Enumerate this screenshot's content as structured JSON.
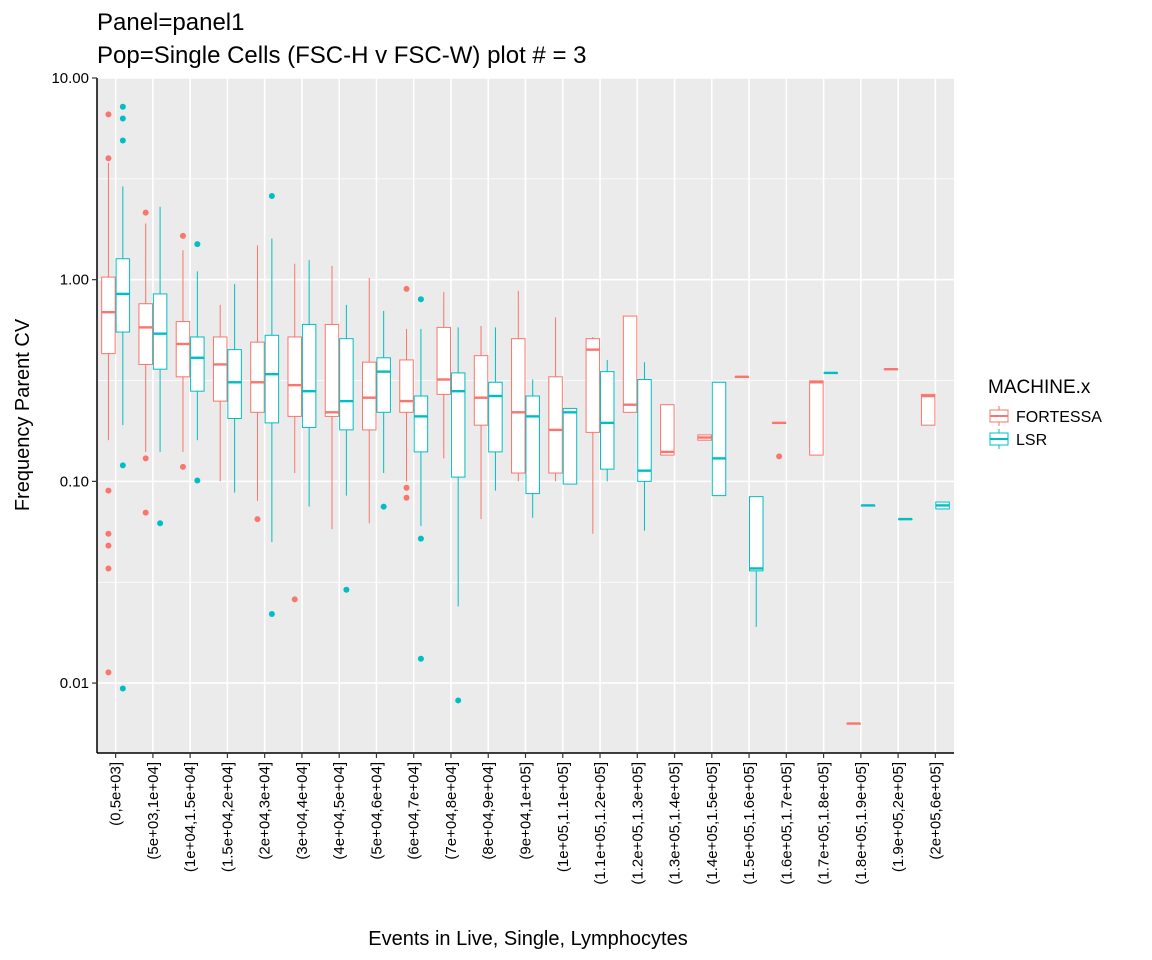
{
  "chart_data": {
    "type": "boxplot",
    "title": "Panel=panel1",
    "subtitle": "Pop=Single Cells (FSC-H v FSC-W) plot # = 3",
    "xlabel": "Events in Live, Single, Lymphocytes",
    "ylabel": "Frequency Parent CV",
    "y_scale": "log10",
    "ylim": [
      0.0045,
      10
    ],
    "y_ticks": [
      {
        "value": 0.01,
        "label": "0.01"
      },
      {
        "value": 0.1,
        "label": "0.10"
      },
      {
        "value": 1,
        "label": "1.00"
      },
      {
        "value": 10,
        "label": "10.00"
      }
    ],
    "grid": true,
    "legend": {
      "title": "MACHINE.x",
      "position": "right"
    },
    "categories": [
      "(0,5e+03]",
      "(5e+03,1e+04]",
      "(1e+04,1.5e+04]",
      "(1.5e+04,2e+04]",
      "(2e+04,3e+04]",
      "(3e+04,4e+04]",
      "(4e+04,5e+04]",
      "(5e+04,6e+04]",
      "(6e+04,7e+04]",
      "(7e+04,8e+04]",
      "(8e+04,9e+04]",
      "(9e+04,1e+05]",
      "(1e+05,1.1e+05]",
      "(1.1e+05,1.2e+05]",
      "(1.2e+05,1.3e+05]",
      "(1.3e+05,1.4e+05]",
      "(1.4e+05,1.5e+05]",
      "(1.5e+05,1.6e+05]",
      "(1.6e+05,1.7e+05]",
      "(1.7e+05,1.8e+05]",
      "(1.8e+05,1.9e+05]",
      "(1.9e+05,2e+05]",
      "(2e+05,6e+05]"
    ],
    "series": [
      {
        "name": "FORTESSA",
        "color": "#F8766D",
        "boxes": [
          {
            "cat": 0,
            "lw": 0.16,
            "q1": 0.43,
            "med": 0.69,
            "q3": 1.03,
            "uw": 3.8,
            "out": [
              6.6,
              4.0,
              0.09,
              0.055,
              0.048,
              0.037,
              0.0113
            ]
          },
          {
            "cat": 1,
            "lw": 0.14,
            "q1": 0.38,
            "med": 0.58,
            "q3": 0.76,
            "uw": 1.9,
            "out": [
              2.15,
              0.13,
              0.07
            ]
          },
          {
            "cat": 2,
            "lw": 0.14,
            "q1": 0.33,
            "med": 0.48,
            "q3": 0.62,
            "uw": 1.4,
            "out": [
              1.65,
              0.118
            ]
          },
          {
            "cat": 3,
            "lw": 0.1,
            "q1": 0.25,
            "med": 0.38,
            "q3": 0.52,
            "uw": 0.75,
            "out": []
          },
          {
            "cat": 4,
            "lw": 0.08,
            "q1": 0.22,
            "med": 0.31,
            "q3": 0.49,
            "uw": 1.48,
            "out": [
              0.065
            ]
          },
          {
            "cat": 5,
            "lw": 0.11,
            "q1": 0.21,
            "med": 0.3,
            "q3": 0.52,
            "uw": 1.2,
            "out": [
              0.026
            ]
          },
          {
            "cat": 6,
            "lw": 0.058,
            "q1": 0.21,
            "med": 0.22,
            "q3": 0.6,
            "uw": 1.17,
            "out": []
          },
          {
            "cat": 7,
            "lw": 0.062,
            "q1": 0.18,
            "med": 0.26,
            "q3": 0.39,
            "uw": 1.02,
            "out": []
          },
          {
            "cat": 8,
            "lw": 0.1,
            "q1": 0.22,
            "med": 0.25,
            "q3": 0.4,
            "uw": 0.57,
            "out": [
              0.9,
              0.093,
              0.083
            ]
          },
          {
            "cat": 9,
            "lw": 0.13,
            "q1": 0.27,
            "med": 0.32,
            "q3": 0.58,
            "uw": 0.87,
            "out": []
          },
          {
            "cat": 10,
            "lw": 0.065,
            "q1": 0.19,
            "med": 0.26,
            "q3": 0.42,
            "uw": 0.59,
            "out": []
          },
          {
            "cat": 11,
            "lw": 0.1,
            "q1": 0.11,
            "med": 0.22,
            "q3": 0.51,
            "uw": 0.88,
            "out": []
          },
          {
            "cat": 12,
            "lw": 0.1,
            "q1": 0.11,
            "med": 0.18,
            "q3": 0.33,
            "uw": 0.65,
            "out": []
          },
          {
            "cat": 13,
            "lw": 0.055,
            "q1": 0.175,
            "med": 0.45,
            "q3": 0.51,
            "uw": 0.52,
            "out": []
          },
          {
            "cat": 14,
            "lw": 0.22,
            "q1": 0.22,
            "med": 0.24,
            "q3": 0.66,
            "uw": 0.66,
            "out": []
          },
          {
            "cat": 15,
            "lw": 0.135,
            "q1": 0.135,
            "med": 0.14,
            "q3": 0.24,
            "uw": 0.24,
            "out": []
          },
          {
            "cat": 16,
            "lw": 0.16,
            "q1": 0.16,
            "med": 0.165,
            "q3": 0.17,
            "uw": 0.17,
            "out": []
          },
          {
            "cat": 17,
            "lw": 0.33,
            "q1": 0.33,
            "med": 0.33,
            "q3": 0.33,
            "uw": 0.33,
            "out": []
          },
          {
            "cat": 18,
            "lw": 0.195,
            "q1": 0.195,
            "med": 0.195,
            "q3": 0.195,
            "uw": 0.195,
            "out": [
              0.133
            ]
          },
          {
            "cat": 19,
            "lw": 0.135,
            "q1": 0.135,
            "med": 0.31,
            "q3": 0.315,
            "uw": 0.315,
            "out": []
          },
          {
            "cat": 20,
            "lw": 0.0063,
            "q1": 0.0063,
            "med": 0.0063,
            "q3": 0.0063,
            "uw": 0.0063,
            "out": []
          },
          {
            "cat": 21,
            "lw": 0.36,
            "q1": 0.36,
            "med": 0.36,
            "q3": 0.36,
            "uw": 0.36,
            "out": []
          },
          {
            "cat": 22,
            "lw": 0.19,
            "q1": 0.19,
            "med": 0.265,
            "q3": 0.27,
            "uw": 0.27,
            "out": []
          }
        ]
      },
      {
        "name": "LSR",
        "color": "#00BFC4",
        "boxes": [
          {
            "cat": 0,
            "lw": 0.19,
            "q1": 0.55,
            "med": 0.85,
            "q3": 1.27,
            "uw": 2.9,
            "out": [
              7.2,
              6.3,
              4.9,
              0.12,
              0.0094
            ]
          },
          {
            "cat": 1,
            "lw": 0.14,
            "q1": 0.36,
            "med": 0.54,
            "q3": 0.85,
            "uw": 2.3,
            "out": [
              0.062
            ]
          },
          {
            "cat": 2,
            "lw": 0.16,
            "q1": 0.28,
            "med": 0.41,
            "q3": 0.52,
            "uw": 1.1,
            "out": [
              1.5,
              0.101
            ]
          },
          {
            "cat": 3,
            "lw": 0.088,
            "q1": 0.205,
            "med": 0.31,
            "q3": 0.45,
            "uw": 0.95,
            "out": []
          },
          {
            "cat": 4,
            "lw": 0.05,
            "q1": 0.195,
            "med": 0.34,
            "q3": 0.53,
            "uw": 1.6,
            "out": [
              2.6,
              0.022
            ]
          },
          {
            "cat": 5,
            "lw": 0.075,
            "q1": 0.185,
            "med": 0.28,
            "q3": 0.6,
            "uw": 1.25,
            "out": []
          },
          {
            "cat": 6,
            "lw": 0.085,
            "q1": 0.18,
            "med": 0.25,
            "q3": 0.51,
            "uw": 0.75,
            "out": [
              0.029
            ]
          },
          {
            "cat": 7,
            "lw": 0.11,
            "q1": 0.22,
            "med": 0.35,
            "q3": 0.41,
            "uw": 0.7,
            "out": [
              0.075
            ]
          },
          {
            "cat": 8,
            "lw": 0.06,
            "q1": 0.14,
            "med": 0.21,
            "q3": 0.265,
            "uw": 0.57,
            "out": [
              0.8,
              0.052,
              0.0132
            ]
          },
          {
            "cat": 9,
            "lw": 0.024,
            "q1": 0.105,
            "med": 0.28,
            "q3": 0.345,
            "uw": 0.58,
            "out": [
              0.0082
            ]
          },
          {
            "cat": 10,
            "lw": 0.09,
            "q1": 0.14,
            "med": 0.265,
            "q3": 0.31,
            "uw": 0.58,
            "out": []
          },
          {
            "cat": 11,
            "lw": 0.066,
            "q1": 0.087,
            "med": 0.21,
            "q3": 0.265,
            "uw": 0.32,
            "out": []
          },
          {
            "cat": 12,
            "lw": 0.097,
            "q1": 0.097,
            "med": 0.22,
            "q3": 0.23,
            "uw": 0.23,
            "out": []
          },
          {
            "cat": 13,
            "lw": 0.1,
            "q1": 0.115,
            "med": 0.195,
            "q3": 0.35,
            "uw": 0.4,
            "out": []
          },
          {
            "cat": 14,
            "lw": 0.057,
            "q1": 0.1,
            "med": 0.113,
            "q3": 0.32,
            "uw": 0.39,
            "out": []
          },
          {
            "cat": 16,
            "lw": 0.085,
            "q1": 0.085,
            "med": 0.13,
            "q3": 0.31,
            "uw": 0.31,
            "out": []
          },
          {
            "cat": 17,
            "lw": 0.019,
            "q1": 0.036,
            "med": 0.037,
            "q3": 0.084,
            "uw": 0.084,
            "out": []
          },
          {
            "cat": 19,
            "lw": 0.345,
            "q1": 0.345,
            "med": 0.345,
            "q3": 0.345,
            "uw": 0.345,
            "out": []
          },
          {
            "cat": 20,
            "lw": 0.076,
            "q1": 0.076,
            "med": 0.076,
            "q3": 0.076,
            "uw": 0.076,
            "out": []
          },
          {
            "cat": 21,
            "lw": 0.065,
            "q1": 0.065,
            "med": 0.065,
            "q3": 0.065,
            "uw": 0.065,
            "out": []
          },
          {
            "cat": 22,
            "lw": 0.073,
            "q1": 0.073,
            "med": 0.076,
            "q3": 0.079,
            "uw": 0.079,
            "out": []
          }
        ]
      }
    ]
  }
}
